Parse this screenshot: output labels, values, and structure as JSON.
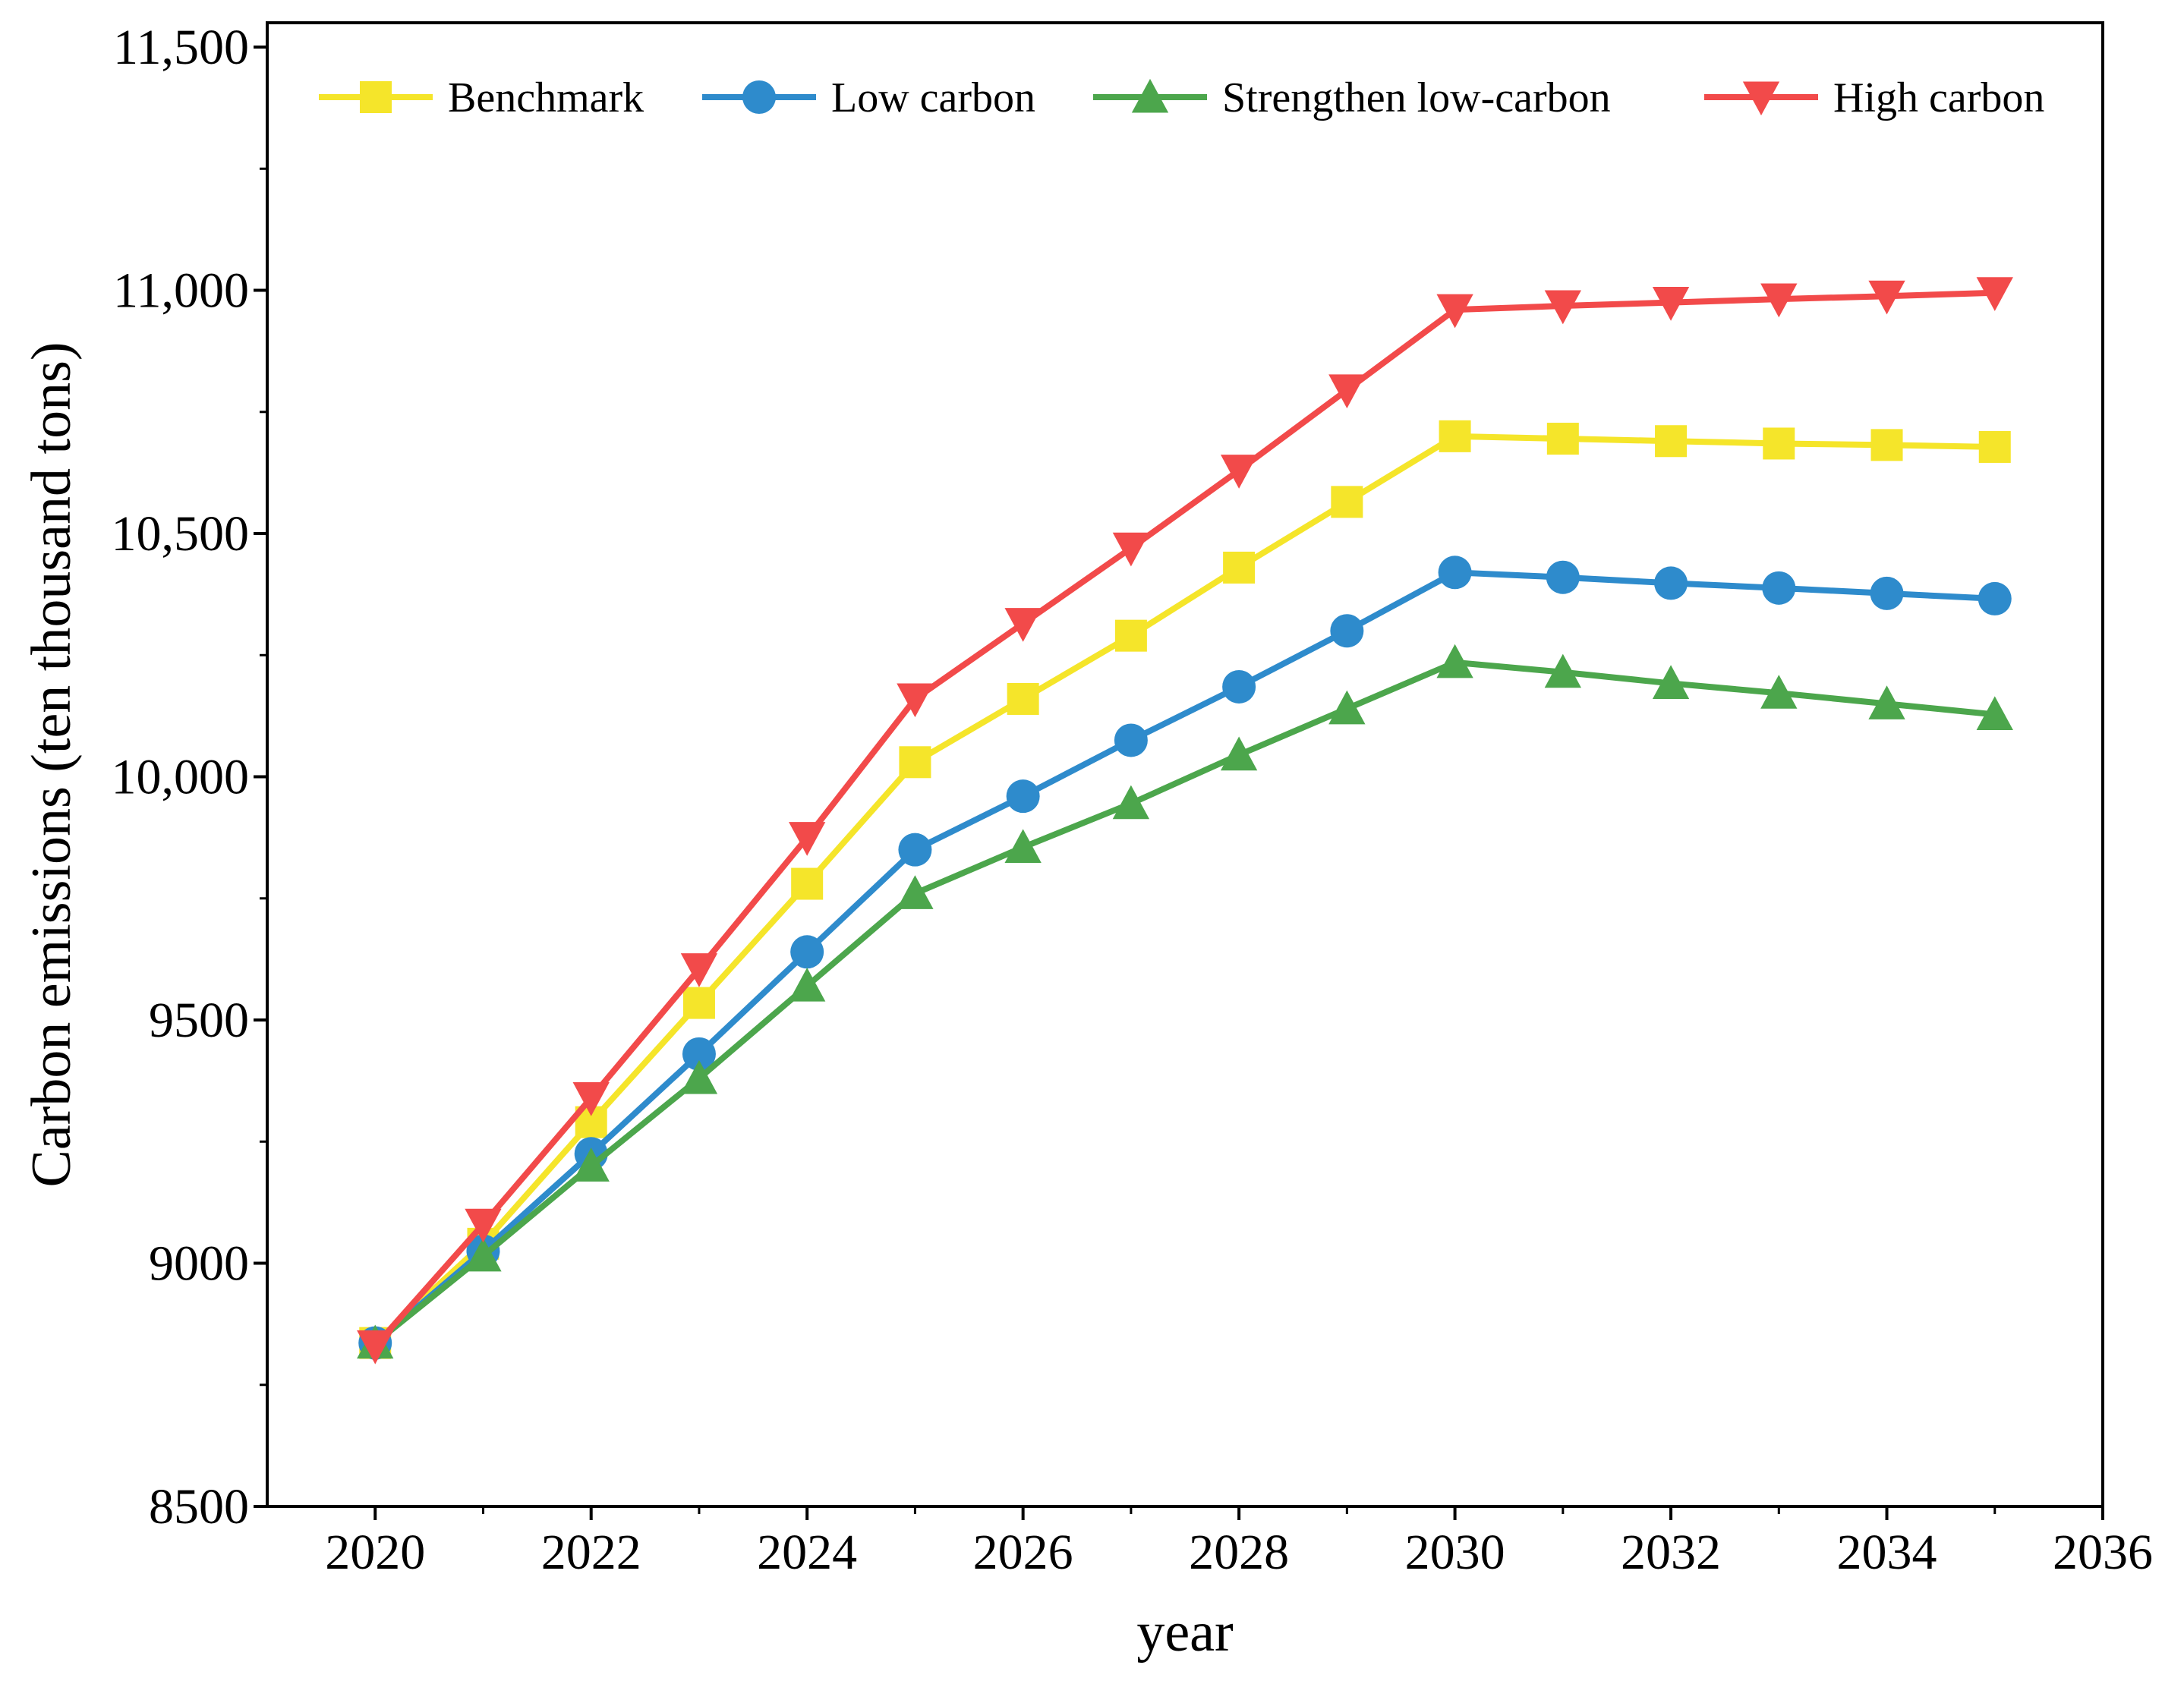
{
  "chart_data": {
    "type": "line",
    "title": "",
    "xlabel": "year",
    "ylabel": "Carbon emissions (ten thousand tons)",
    "xlim": [
      2019,
      2036
    ],
    "ylim": [
      8500,
      11550
    ],
    "xticks": [
      2020,
      2022,
      2024,
      2026,
      2028,
      2030,
      2032,
      2034,
      2036
    ],
    "xtick_labels": [
      "2020",
      "2022",
      "2024",
      "2026",
      "2028",
      "2030",
      "2032",
      "2034",
      "2036"
    ],
    "yticks": [
      8500,
      9000,
      9500,
      10000,
      10500,
      11000,
      11500
    ],
    "ytick_labels": [
      "8500",
      "9000",
      "9500",
      "10,000",
      "10,500",
      "11,000",
      "11,500"
    ],
    "grid": false,
    "legend_position": "top",
    "x": [
      2020,
      2021,
      2022,
      2023,
      2024,
      2025,
      2026,
      2027,
      2028,
      2029,
      2030,
      2031,
      2032,
      2033,
      2034,
      2035
    ],
    "series": [
      {
        "name": "Benchmark",
        "color": "#f5e52a",
        "marker": "square",
        "values": [
          8836,
          9040,
          9290,
          9535,
          9780,
          10030,
          10160,
          10290,
          10430,
          10565,
          10700,
          10695,
          10690,
          10685,
          10682,
          10678
        ]
      },
      {
        "name": "Low carbon",
        "color": "#2e8bcc",
        "marker": "circle",
        "values": [
          8836,
          9025,
          9225,
          9430,
          9640,
          9850,
          9960,
          10075,
          10185,
          10300,
          10420,
          10410,
          10398,
          10388,
          10377,
          10366
        ]
      },
      {
        "name": "Strengthen low-carbon",
        "color": "#4ca64c",
        "marker": "triangle-up",
        "values": [
          8836,
          9015,
          9200,
          9380,
          9570,
          9760,
          9855,
          9945,
          10045,
          10140,
          10235,
          10215,
          10192,
          10172,
          10150,
          10128
        ]
      },
      {
        "name": "High carbon",
        "color": "#f24a4a",
        "marker": "triangle-down",
        "values": [
          8830,
          9080,
          9340,
          9605,
          9875,
          10160,
          10315,
          10470,
          10630,
          10795,
          10960,
          10968,
          10975,
          10982,
          10988,
          10995
        ]
      }
    ]
  }
}
